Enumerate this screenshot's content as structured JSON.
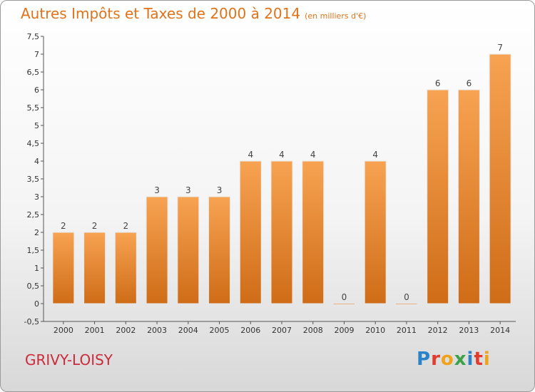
{
  "header": {
    "title": "Autres Impôts et Taxes de 2000 à 2014",
    "unit": "(en milliers d'€)"
  },
  "footer": {
    "commune": "GRIVY-LOISY",
    "brand": "Proxiti"
  },
  "colors": {
    "bar": "#f0913a",
    "bar_dark": "#d06c18",
    "title": "#e0731a",
    "commune": "#cc2a3b"
  },
  "chart_data": {
    "type": "bar",
    "title": "Autres Impôts et Taxes de 2000 à 2014",
    "subtitle": "(en milliers d'€)",
    "categories": [
      "2000",
      "2001",
      "2002",
      "2003",
      "2004",
      "2005",
      "2006",
      "2007",
      "2008",
      "2009",
      "2010",
      "2011",
      "2012",
      "2013",
      "2014"
    ],
    "values": [
      2,
      2,
      2,
      3,
      3,
      3,
      4,
      4,
      4,
      0,
      4,
      0,
      6,
      6,
      7
    ],
    "data_labels": [
      "2",
      "2",
      "2",
      "3",
      "3",
      "3",
      "4",
      "4",
      "4",
      "0",
      "4",
      "0",
      "6",
      "6",
      "7"
    ],
    "yticks": [
      "-0,5",
      "0",
      "0,5",
      "1",
      "1,5",
      "2",
      "2,5",
      "3",
      "3,5",
      "4",
      "4,5",
      "5",
      "5,5",
      "6",
      "6,5",
      "7",
      "7,5"
    ],
    "ylim": [
      -0.5,
      7.5
    ],
    "grid": false,
    "legend": "none"
  }
}
